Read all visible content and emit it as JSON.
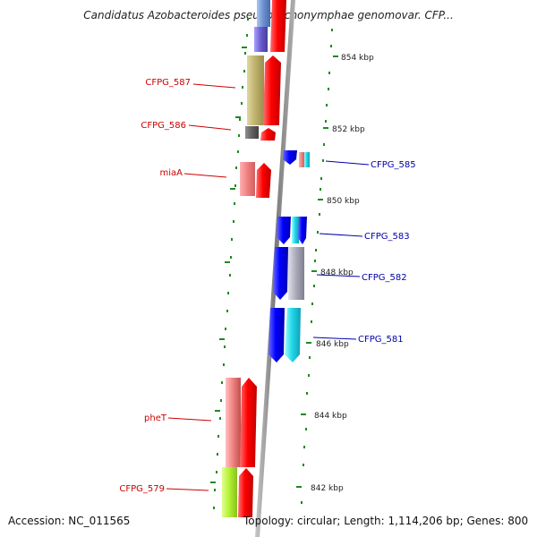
{
  "title": "Candidatus Azobacteroides pseudotrichonymphae genomovar. CFP...",
  "footer": {
    "accession": "Accession: NC_011565",
    "topology": "Topology: circular; Length: 1,114,206 bp; Genes: 800"
  },
  "colors": {
    "backbone": "#8a8a8a",
    "tick": "#1f8a1f",
    "forward_label": "#cc0000",
    "reverse_label": "#0000aa"
  },
  "kbp_labels": [
    "854 kbp",
    "852 kbp",
    "850 kbp",
    "848 kbp",
    "846 kbp",
    "844 kbp",
    "842 kbp"
  ],
  "gene_labels": {
    "cfpg_587": "CFPG_587",
    "cfpg_586": "CFPG_586",
    "miaA": "miaA",
    "cfpg_585": "CFPG_585",
    "cfpg_583": "CFPG_583",
    "cfpg_582": "CFPG_582",
    "cfpg_581": "CFPG_581",
    "pheT": "pheT",
    "cfpg_579": "CFPG_579"
  }
}
